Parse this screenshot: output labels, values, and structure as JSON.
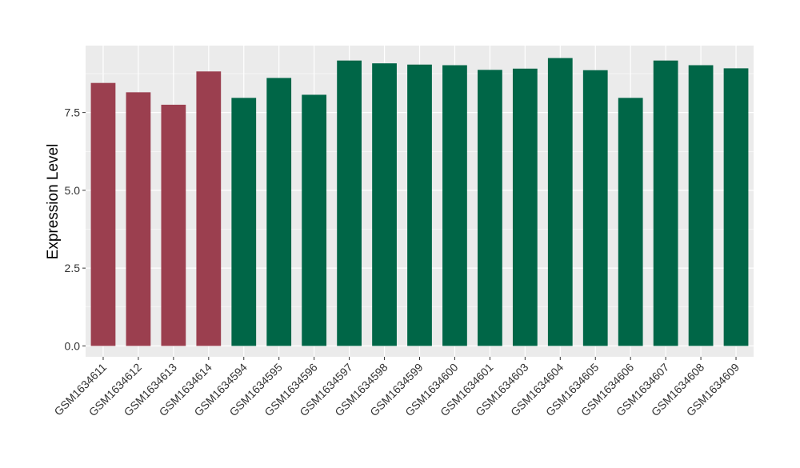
{
  "chart_data": {
    "type": "bar",
    "title": "",
    "xlabel": "",
    "ylabel": "Expression Level",
    "ylim": [
      -0.35,
      9.65
    ],
    "yticks": [
      0.0,
      2.5,
      5.0,
      7.5
    ],
    "ytick_labels": [
      "0.0",
      "2.5",
      "5.0",
      "7.5"
    ],
    "grid": true,
    "legend": "none",
    "categories": [
      "GSM1634611",
      "GSM1634612",
      "GSM1634613",
      "GSM1634614",
      "GSM1634594",
      "GSM1634595",
      "GSM1634596",
      "GSM1634597",
      "GSM1634598",
      "GSM1634599",
      "GSM1634600",
      "GSM1634601",
      "GSM1634603",
      "GSM1634604",
      "GSM1634605",
      "GSM1634606",
      "GSM1634607",
      "GSM1634608",
      "GSM1634609"
    ],
    "values": [
      8.45,
      8.15,
      7.75,
      8.82,
      7.97,
      8.61,
      8.07,
      9.17,
      9.08,
      9.04,
      9.02,
      8.87,
      8.91,
      9.25,
      8.86,
      7.97,
      9.17,
      9.02,
      8.92
    ],
    "bar_colors": [
      "#9b3f4f",
      "#9b3f4f",
      "#9b3f4f",
      "#9b3f4f",
      "#006647",
      "#006647",
      "#006647",
      "#006647",
      "#006647",
      "#006647",
      "#006647",
      "#006647",
      "#006647",
      "#006647",
      "#006647",
      "#006647",
      "#006647",
      "#006647",
      "#006647"
    ],
    "panel_background": "#ebebeb",
    "grid_color": "#ffffff"
  }
}
